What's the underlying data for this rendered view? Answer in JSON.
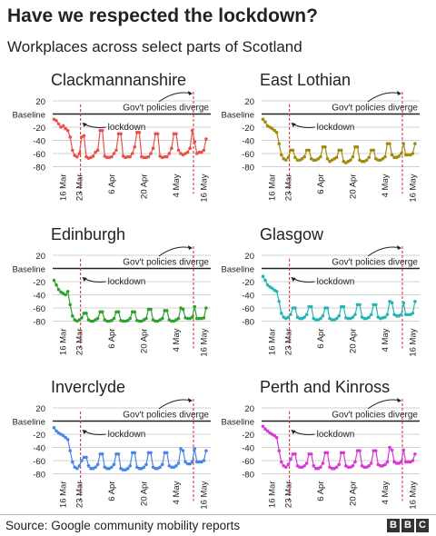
{
  "title": "Have we respected the lockdown?",
  "subtitle": "Workplaces across select parts of Scotland",
  "source": "Source: Google community mobility reports",
  "logo": [
    "B",
    "B",
    "C"
  ],
  "annotations": {
    "policy": "Gov't policies diverge",
    "lockdown": "lockdown"
  },
  "chart_data": [
    {
      "type": "line",
      "title": "Clackmannanshire",
      "color": "#e8514a",
      "yticks": [
        "20",
        "Baseline",
        "-20",
        "-40",
        "-60",
        "-80"
      ],
      "ylim": [
        -80,
        20
      ],
      "xticks": [
        "16 Mar",
        "23 Mar",
        "6 Apr",
        "20 Apr",
        "4 May",
        "16 May"
      ],
      "markers": {
        "lockdown": "23 Mar",
        "policy_diverge": "11 May"
      },
      "series": [
        {
          "x_start": "2020-03-12",
          "x_end": "2020-05-17",
          "values": [
            -8,
            -10,
            -15,
            -20,
            -18,
            -22,
            -25,
            -35,
            -55,
            -63,
            -65,
            -60,
            -35,
            -33,
            -65,
            -67,
            -66,
            -64,
            -58,
            -55,
            -25,
            -25,
            -64,
            -66,
            -66,
            -65,
            -60,
            -55,
            -30,
            -30,
            -64,
            -66,
            -65,
            -65,
            -60,
            -50,
            -28,
            -28,
            -65,
            -66,
            -66,
            -65,
            -60,
            -52,
            -30,
            -30,
            -64,
            -66,
            -65,
            -65,
            -60,
            -52,
            -30,
            -30,
            -55,
            -60,
            -62,
            -60,
            -58,
            -52,
            -25,
            -42,
            -60,
            -58,
            -58,
            -55,
            -38
          ]
        }
      ]
    },
    {
      "type": "line",
      "title": "East Lothian",
      "color": "#a28a0e",
      "yticks": [
        "20",
        "Baseline",
        "-20",
        "-40",
        "-60",
        "-80"
      ],
      "ylim": [
        -80,
        20
      ],
      "xticks": [
        "16 Mar",
        "23 Mar",
        "6 Apr",
        "20 Apr",
        "4 May",
        "16 May"
      ],
      "markers": {
        "lockdown": "23 Mar",
        "policy_diverge": "11 May"
      },
      "series": [
        {
          "x_start": "2020-03-12",
          "x_end": "2020-05-17",
          "values": [
            -8,
            -12,
            -18,
            -20,
            -22,
            -25,
            -28,
            -45,
            -62,
            -68,
            -70,
            -66,
            -55,
            -55,
            -66,
            -70,
            -70,
            -68,
            -65,
            -55,
            -55,
            -68,
            -70,
            -70,
            -68,
            -65,
            -50,
            -50,
            -68,
            -72,
            -70,
            -68,
            -66,
            -55,
            -55,
            -72,
            -74,
            -72,
            -70,
            -65,
            -50,
            -50,
            -70,
            -72,
            -72,
            -70,
            -66,
            -55,
            -55,
            -68,
            -70,
            -70,
            -68,
            -65,
            -45,
            -45,
            -62,
            -66,
            -66,
            -64,
            -60,
            -45,
            -62,
            -62,
            -62,
            -60,
            -45
          ]
        }
      ]
    },
    {
      "type": "line",
      "title": "Edinburgh",
      "color": "#2ea12e",
      "yticks": [
        "20",
        "Baseline",
        "-20",
        "-40",
        "-60",
        "-80"
      ],
      "ylim": [
        -80,
        20
      ],
      "xticks": [
        "16 Mar",
        "23 Mar",
        "6 Apr",
        "20 Apr",
        "4 May",
        "16 May"
      ],
      "markers": {
        "lockdown": "23 Mar",
        "policy_diverge": "11 May"
      },
      "series": [
        {
          "x_start": "2020-03-12",
          "x_end": "2020-05-17",
          "values": [
            -18,
            -25,
            -32,
            -36,
            -38,
            -40,
            -35,
            -55,
            -72,
            -78,
            -80,
            -78,
            -75,
            -68,
            -68,
            -78,
            -80,
            -80,
            -78,
            -76,
            -66,
            -66,
            -78,
            -80,
            -80,
            -79,
            -76,
            -66,
            -66,
            -79,
            -80,
            -80,
            -79,
            -76,
            -66,
            -66,
            -79,
            -80,
            -80,
            -78,
            -76,
            -62,
            -62,
            -78,
            -80,
            -80,
            -78,
            -76,
            -64,
            -64,
            -78,
            -80,
            -80,
            -78,
            -76,
            -60,
            -62,
            -75,
            -76,
            -76,
            -74,
            -58,
            -76,
            -76,
            -76,
            -75,
            -60
          ]
        }
      ]
    },
    {
      "type": "line",
      "title": "Glasgow",
      "color": "#26b5b5",
      "yticks": [
        "20",
        "Baseline",
        "-20",
        "-40",
        "-60",
        "-80"
      ],
      "ylim": [
        -80,
        20
      ],
      "xticks": [
        "16 Mar",
        "23 Mar",
        "6 Apr",
        "20 Apr",
        "4 May",
        "16 May"
      ],
      "markers": {
        "lockdown": "23 Mar",
        "policy_diverge": "11 May"
      },
      "series": [
        {
          "x_start": "2020-03-12",
          "x_end": "2020-05-17",
          "values": [
            -12,
            -18,
            -25,
            -28,
            -30,
            -33,
            -35,
            -50,
            -68,
            -74,
            -76,
            -74,
            -70,
            -60,
            -60,
            -74,
            -76,
            -76,
            -74,
            -70,
            -58,
            -58,
            -76,
            -78,
            -78,
            -76,
            -72,
            -60,
            -60,
            -76,
            -78,
            -78,
            -76,
            -72,
            -58,
            -58,
            -75,
            -76,
            -76,
            -74,
            -70,
            -55,
            -55,
            -74,
            -76,
            -76,
            -74,
            -70,
            -55,
            -55,
            -74,
            -76,
            -75,
            -74,
            -70,
            -50,
            -52,
            -70,
            -72,
            -72,
            -70,
            -52,
            -70,
            -70,
            -70,
            -68,
            -50
          ]
        }
      ]
    },
    {
      "type": "line",
      "title": "Inverclyde",
      "color": "#4a86e8",
      "yticks": [
        "20",
        "Baseline",
        "-20",
        "-40",
        "-60",
        "-80"
      ],
      "ylim": [
        -80,
        20
      ],
      "xticks": [
        "16 Mar",
        "23 Mar",
        "6 Apr",
        "20 Apr",
        "4 May",
        "16 May"
      ],
      "markers": {
        "lockdown": "23 Mar",
        "policy_diverge": "11 May"
      },
      "series": [
        {
          "x_start": "2020-03-12",
          "x_end": "2020-05-17",
          "values": [
            -10,
            -15,
            -18,
            -20,
            -22,
            -25,
            -28,
            -45,
            -62,
            -70,
            -72,
            -68,
            -60,
            -55,
            -55,
            -68,
            -72,
            -72,
            -70,
            -66,
            -50,
            -50,
            -70,
            -72,
            -72,
            -70,
            -66,
            -50,
            -50,
            -72,
            -74,
            -74,
            -72,
            -68,
            -48,
            -48,
            -70,
            -72,
            -72,
            -70,
            -66,
            -48,
            -48,
            -70,
            -72,
            -72,
            -70,
            -66,
            -48,
            -48,
            -68,
            -70,
            -70,
            -68,
            -64,
            -42,
            -45,
            -62,
            -65,
            -65,
            -62,
            -42,
            -62,
            -62,
            -62,
            -60,
            -45
          ]
        }
      ]
    },
    {
      "type": "line",
      "title": "Perth and Kinross",
      "color": "#d63ad3",
      "yticks": [
        "20",
        "Baseline",
        "-20",
        "-40",
        "-60",
        "-80"
      ],
      "ylim": [
        -80,
        20
      ],
      "xticks": [
        "16 Mar",
        "23 Mar",
        "6 Apr",
        "20 Apr",
        "4 May",
        "16 May"
      ],
      "markers": {
        "lockdown": "23 Mar",
        "policy_diverge": "11 May"
      },
      "series": [
        {
          "x_start": "2020-03-12",
          "x_end": "2020-05-17",
          "values": [
            -8,
            -12,
            -15,
            -18,
            -20,
            -22,
            -25,
            -45,
            -62,
            -68,
            -70,
            -66,
            -58,
            -50,
            -50,
            -68,
            -70,
            -70,
            -68,
            -64,
            -50,
            -50,
            -68,
            -72,
            -72,
            -70,
            -64,
            -48,
            -48,
            -70,
            -72,
            -72,
            -70,
            -66,
            -48,
            -48,
            -68,
            -70,
            -70,
            -68,
            -62,
            -45,
            -45,
            -68,
            -70,
            -70,
            -68,
            -64,
            -45,
            -45,
            -66,
            -68,
            -68,
            -66,
            -62,
            -40,
            -44,
            -62,
            -64,
            -64,
            -62,
            -44,
            -62,
            -62,
            -62,
            -60,
            -50
          ]
        }
      ]
    }
  ]
}
